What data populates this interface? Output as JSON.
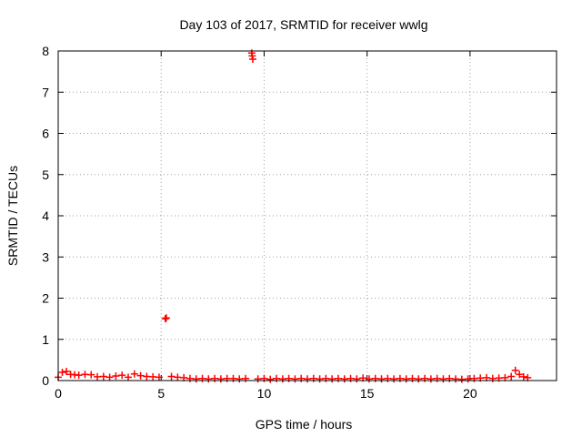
{
  "chart_data": {
    "type": "scatter",
    "title": "Day 103 of 2017, SRMTID for receiver wwlg",
    "xlabel": "GPS time / hours",
    "ylabel": "SRMTID / TECUs",
    "xlim": [
      0,
      24.2
    ],
    "ylim": [
      0,
      8
    ],
    "xticks": [
      0,
      5,
      10,
      15,
      20
    ],
    "yticks": [
      0,
      1,
      2,
      3,
      4,
      5,
      6,
      7,
      8
    ],
    "grid": true,
    "marker": "plus",
    "color": "#ff0000",
    "series": [
      {
        "name": "SRMTID",
        "x": [
          0.0,
          0.2,
          0.4,
          0.6,
          0.8,
          1.0,
          1.3,
          1.6,
          1.9,
          2.2,
          2.5,
          2.8,
          3.1,
          3.4,
          3.7,
          4.0,
          4.3,
          4.6,
          4.9,
          5.2,
          5.25,
          5.5,
          5.8,
          6.1,
          6.4,
          6.7,
          7.0,
          7.3,
          7.6,
          7.9,
          8.2,
          8.5,
          8.8,
          9.1,
          9.4,
          9.42,
          9.45,
          9.7,
          10.0,
          10.3,
          10.6,
          10.9,
          11.2,
          11.5,
          11.8,
          12.1,
          12.4,
          12.7,
          13.0,
          13.3,
          13.6,
          13.9,
          14.2,
          14.5,
          14.8,
          15.1,
          15.4,
          15.7,
          16.0,
          16.3,
          16.6,
          16.9,
          17.2,
          17.5,
          17.8,
          18.1,
          18.4,
          18.7,
          19.0,
          19.3,
          19.6,
          19.9,
          20.2,
          20.5,
          20.8,
          21.1,
          21.4,
          21.7,
          22.0,
          22.2,
          22.4,
          22.6,
          22.8
        ],
        "values": [
          0.08,
          0.2,
          0.22,
          0.15,
          0.14,
          0.13,
          0.15,
          0.14,
          0.09,
          0.1,
          0.08,
          0.11,
          0.13,
          0.08,
          0.16,
          0.12,
          0.1,
          0.09,
          0.08,
          1.5,
          1.52,
          0.1,
          0.08,
          0.07,
          0.05,
          0.04,
          0.05,
          0.04,
          0.05,
          0.04,
          0.05,
          0.05,
          0.04,
          0.05,
          7.95,
          7.88,
          7.8,
          0.04,
          0.05,
          0.03,
          0.05,
          0.04,
          0.05,
          0.04,
          0.05,
          0.04,
          0.05,
          0.04,
          0.05,
          0.04,
          0.05,
          0.04,
          0.05,
          0.04,
          0.06,
          0.04,
          0.05,
          0.04,
          0.05,
          0.04,
          0.05,
          0.04,
          0.05,
          0.04,
          0.05,
          0.04,
          0.05,
          0.04,
          0.05,
          0.04,
          0.03,
          0.04,
          0.05,
          0.06,
          0.07,
          0.05,
          0.06,
          0.07,
          0.1,
          0.25,
          0.15,
          0.09,
          0.07
        ]
      }
    ]
  }
}
